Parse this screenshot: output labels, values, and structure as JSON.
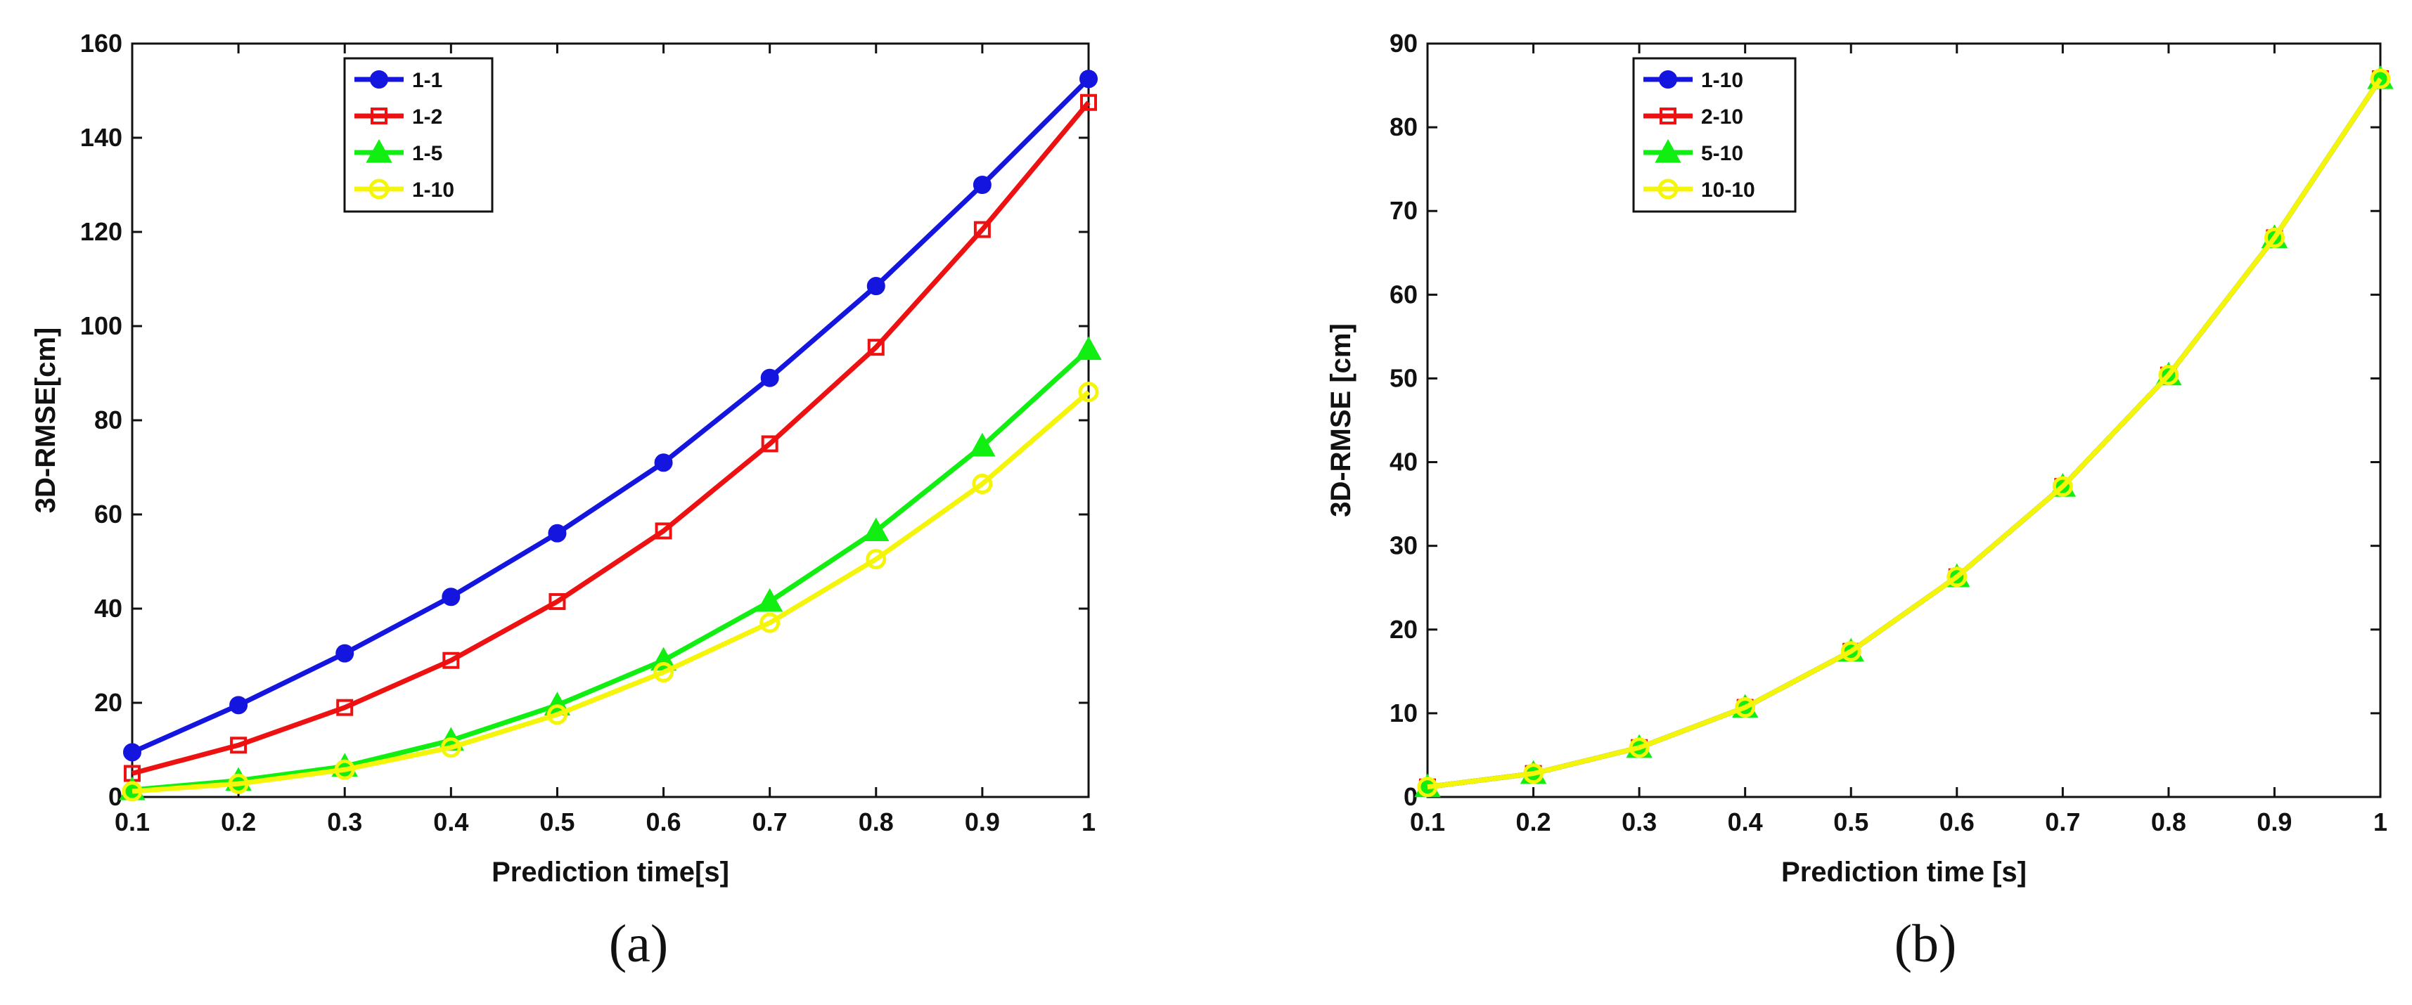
{
  "chart_data": [
    {
      "type": "line",
      "panel_label": "(a)",
      "title": "",
      "xlabel": "Prediction time[s]",
      "ylabel": "3D-RMSE[cm]",
      "xlim": [
        0.1,
        1
      ],
      "ylim": [
        0,
        160
      ],
      "xticks": [
        0.1,
        0.2,
        0.3,
        0.4,
        0.5,
        0.6,
        0.7,
        0.8,
        0.9,
        1
      ],
      "xtick_labels": [
        "0.1",
        "0.2",
        "0.3",
        "0.4",
        "0.5",
        "0.6",
        "0.7",
        "0.8",
        "0.9",
        "1"
      ],
      "yticks": [
        0,
        20,
        40,
        60,
        80,
        100,
        120,
        140,
        160
      ],
      "ytick_labels": [
        "0",
        "20",
        "40",
        "60",
        "80",
        "100",
        "120",
        "140",
        "160"
      ],
      "grid": false,
      "legend_position": "top-center",
      "x": [
        0.1,
        0.2,
        0.3,
        0.4,
        0.5,
        0.6,
        0.7,
        0.8,
        0.9,
        1.0
      ],
      "series": [
        {
          "name": "1-1",
          "color": "#1515e0",
          "marker": "circle-filled",
          "values": [
            9.5,
            19.5,
            30.5,
            42.5,
            56,
            71,
            89,
            108.5,
            130,
            152.5
          ]
        },
        {
          "name": "1-2",
          "color": "#ee1111",
          "marker": "square-open",
          "values": [
            5,
            11,
            19,
            29,
            41.5,
            56.5,
            75,
            95.5,
            120.5,
            147.5
          ]
        },
        {
          "name": "1-5",
          "color": "#11ee11",
          "marker": "triangle-filled",
          "values": [
            1.5,
            3.5,
            6.5,
            12,
            19.5,
            29,
            41.5,
            56.5,
            74.5,
            95
          ]
        },
        {
          "name": "1-10",
          "color": "#f5f50a",
          "marker": "circle-open",
          "values": [
            1.2,
            2.8,
            5.8,
            10.5,
            17.5,
            26.5,
            37,
            50.5,
            66.5,
            86
          ]
        }
      ]
    },
    {
      "type": "line",
      "panel_label": "(b)",
      "title": "",
      "xlabel": "Prediction time [s]",
      "ylabel": "3D-RMSE [cm]",
      "xlim": [
        0.1,
        1
      ],
      "ylim": [
        0,
        90
      ],
      "xticks": [
        0.1,
        0.2,
        0.3,
        0.4,
        0.5,
        0.6,
        0.7,
        0.8,
        0.9,
        1
      ],
      "xtick_labels": [
        "0.1",
        "0.2",
        "0.3",
        "0.4",
        "0.5",
        "0.6",
        "0.7",
        "0.8",
        "0.9",
        "1"
      ],
      "yticks": [
        0,
        10,
        20,
        30,
        40,
        50,
        60,
        70,
        80,
        90
      ],
      "ytick_labels": [
        "0",
        "10",
        "20",
        "30",
        "40",
        "50",
        "60",
        "70",
        "80",
        "90"
      ],
      "grid": false,
      "legend_position": "top-left",
      "x": [
        0.1,
        0.2,
        0.3,
        0.4,
        0.5,
        0.6,
        0.7,
        0.8,
        0.9,
        1.0
      ],
      "series": [
        {
          "name": "1-10",
          "color": "#1515e0",
          "marker": "circle-filled",
          "values": [
            1.2,
            2.8,
            5.9,
            10.7,
            17.4,
            26.3,
            37.1,
            50.4,
            66.8,
            85.8
          ]
        },
        {
          "name": "2-10",
          "color": "#ee1111",
          "marker": "square-open",
          "values": [
            1.2,
            2.8,
            5.9,
            10.7,
            17.4,
            26.3,
            37.1,
            50.4,
            66.8,
            85.8
          ]
        },
        {
          "name": "5-10",
          "color": "#11ee11",
          "marker": "triangle-filled",
          "values": [
            1.2,
            2.8,
            5.9,
            10.7,
            17.4,
            26.3,
            37.1,
            50.4,
            66.8,
            85.8
          ]
        },
        {
          "name": "10-10",
          "color": "#f5f50a",
          "marker": "circle-open",
          "values": [
            1.2,
            2.8,
            5.9,
            10.7,
            17.4,
            26.3,
            37.1,
            50.4,
            66.8,
            85.8
          ]
        }
      ]
    }
  ]
}
